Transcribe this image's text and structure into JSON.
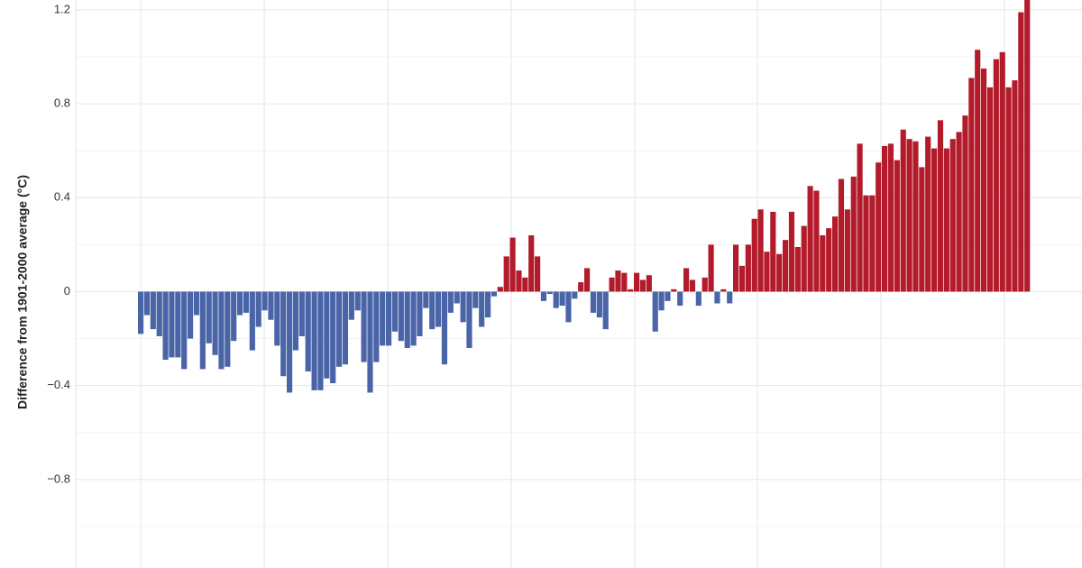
{
  "chart_data": {
    "type": "bar",
    "y_label": "Difference from 1901-2000 average (°C)",
    "values": [
      -0.18,
      -0.1,
      -0.16,
      -0.19,
      -0.29,
      -0.28,
      -0.28,
      -0.33,
      -0.2,
      -0.1,
      -0.33,
      -0.22,
      -0.27,
      -0.33,
      -0.32,
      -0.21,
      -0.1,
      -0.09,
      -0.25,
      -0.15,
      -0.08,
      -0.12,
      -0.23,
      -0.36,
      -0.43,
      -0.25,
      -0.19,
      -0.34,
      -0.42,
      -0.42,
      -0.37,
      -0.39,
      -0.32,
      -0.31,
      -0.12,
      -0.08,
      -0.3,
      -0.43,
      -0.3,
      -0.23,
      -0.23,
      -0.17,
      -0.21,
      -0.24,
      -0.23,
      -0.19,
      -0.07,
      -0.16,
      -0.15,
      -0.31,
      -0.09,
      -0.05,
      -0.13,
      -0.24,
      -0.07,
      -0.15,
      -0.11,
      -0.02,
      0.02,
      0.15,
      0.23,
      0.09,
      0.06,
      0.24,
      0.15,
      -0.04,
      -0.01,
      -0.07,
      -0.06,
      -0.13,
      -0.03,
      0.04,
      0.1,
      -0.09,
      -0.11,
      -0.16,
      0.06,
      0.09,
      0.08,
      0.01,
      0.08,
      0.05,
      0.07,
      -0.17,
      -0.08,
      -0.04,
      0.01,
      -0.06,
      0.1,
      0.05,
      -0.06,
      0.06,
      0.2,
      -0.05,
      0.01,
      -0.05,
      0.2,
      0.11,
      0.2,
      0.31,
      0.35,
      0.17,
      0.34,
      0.16,
      0.22,
      0.34,
      0.19,
      0.28,
      0.45,
      0.43,
      0.24,
      0.27,
      0.32,
      0.48,
      0.35,
      0.49,
      0.63,
      0.41,
      0.41,
      0.55,
      0.62,
      0.63,
      0.56,
      0.69,
      0.65,
      0.64,
      0.53,
      0.66,
      0.61,
      0.73,
      0.61,
      0.65,
      0.68,
      0.75,
      0.91,
      1.03,
      0.95,
      0.87,
      0.99,
      1.02,
      0.87,
      0.9,
      1.19,
      1.3
    ],
    "positive_color": "#b31b2b",
    "negative_color": "#4a64a8",
    "ylim": [
      -1.177,
      1.242
    ],
    "yticks": [
      {
        "value": -0.8,
        "label": "−0.8"
      },
      {
        "value": -0.4,
        "label": "−0.4"
      },
      0,
      0.4,
      0.8,
      1.2
    ],
    "y_minor_ticks": [
      -1.0,
      -0.6,
      -0.2,
      0.2,
      0.6,
      1.0
    ],
    "grid": true
  }
}
